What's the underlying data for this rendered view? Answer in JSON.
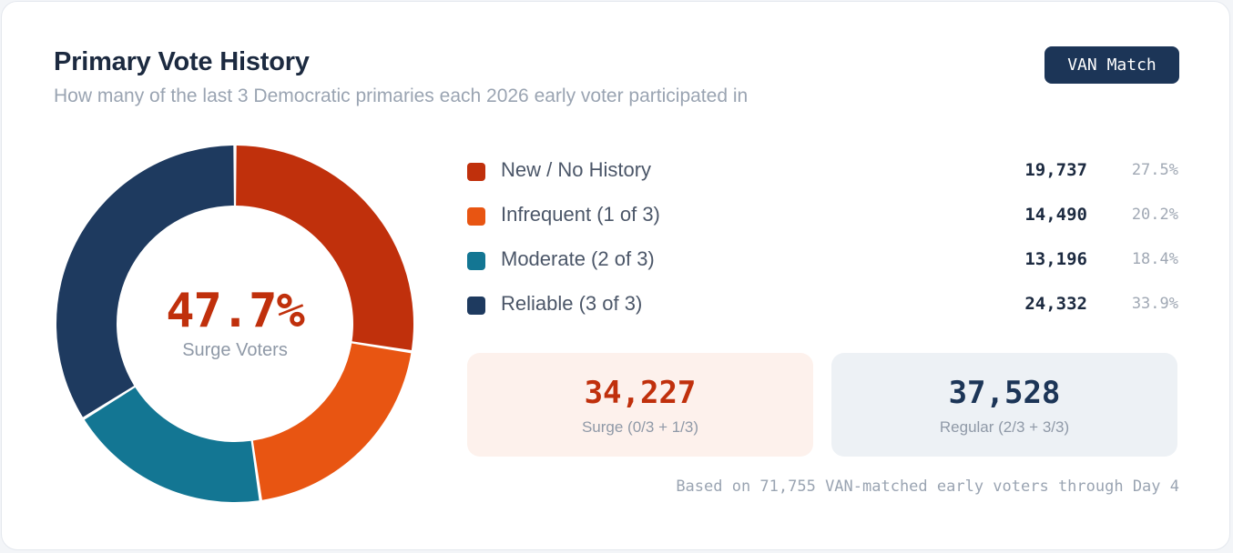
{
  "header": {
    "title": "Primary Vote History",
    "subtitle": "How many of the last 3 Democratic primaries each 2026 early voter participated in",
    "badge": "VAN Match"
  },
  "center": {
    "value": "47.7%",
    "label": "Surge Voters"
  },
  "chart_data": {
    "type": "pie",
    "title": "Primary Vote History",
    "categories": [
      "New / No History",
      "Infrequent (1 of 3)",
      "Moderate (2 of 3)",
      "Reliable (3 of 3)"
    ],
    "values": [
      19737,
      14490,
      13196,
      24332
    ],
    "counts_display": [
      "19,737",
      "14,490",
      "13,196",
      "24,332"
    ],
    "percents": [
      "27.5%",
      "20.2%",
      "18.4%",
      "33.9%"
    ],
    "colors": [
      "#c0300c",
      "#e85512",
      "#137693",
      "#1e3a5f"
    ],
    "donut": true
  },
  "summary": {
    "surge": {
      "value": "34,227",
      "label": "Surge (0/3 + 1/3)",
      "color": "#c0300c"
    },
    "regular": {
      "value": "37,528",
      "label": "Regular (2/3 + 3/3)",
      "color": "#1c3557"
    }
  },
  "footnote": "Based on 71,755 VAN-matched early voters through Day 4"
}
